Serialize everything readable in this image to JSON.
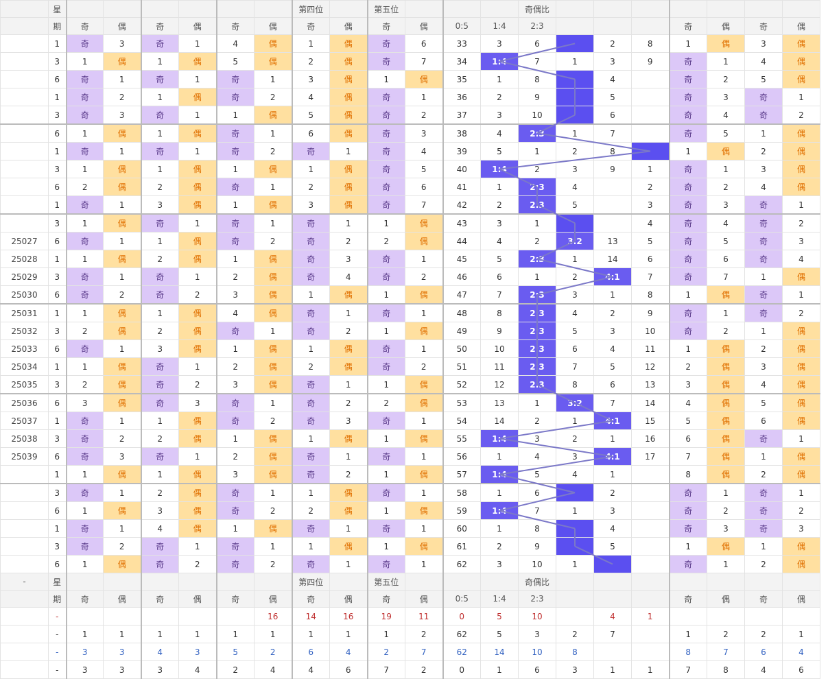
{
  "header": {
    "row1": [
      "",
      "星",
      "",
      "",
      "",
      "",
      "",
      "",
      "第四位",
      "",
      "第五位",
      "",
      "",
      "",
      "奇偶比",
      "",
      "",
      "",
      "",
      "",
      "",
      ""
    ],
    "row2": [
      "",
      "期",
      "奇",
      "偶",
      "奇",
      "偶",
      "奇",
      "偶",
      "奇",
      "偶",
      "奇",
      "偶",
      "0:5",
      "1:4",
      "2:3",
      "",
      "",
      "",
      "奇",
      "偶",
      "奇",
      "偶"
    ]
  },
  "rows": [
    [
      "",
      "1",
      "奇",
      "3",
      "奇",
      "1",
      "4",
      "偶",
      "1",
      "偶",
      "奇",
      "6",
      "33",
      "3",
      "6",
      "#",
      "2",
      "8",
      "1",
      "偶",
      "3",
      "偶"
    ],
    [
      "",
      "3",
      "1",
      "偶",
      "1",
      "偶",
      "5",
      "偶",
      "2",
      "偶",
      "奇",
      "7",
      "34",
      "1:4",
      "7",
      "1",
      "3",
      "9",
      "奇",
      "1",
      "4",
      "偶"
    ],
    [
      "",
      "6",
      "奇",
      "1",
      "奇",
      "1",
      "奇",
      "1",
      "3",
      "偶",
      "1",
      "偶",
      "35",
      "1",
      "8",
      "#",
      "4",
      "",
      "奇",
      "2",
      "5",
      "偶"
    ],
    [
      "",
      "1",
      "奇",
      "2",
      "1",
      "偶",
      "奇",
      "2",
      "4",
      "偶",
      "奇",
      "1",
      "36",
      "2",
      "9",
      "#",
      "5",
      "",
      "奇",
      "3",
      "奇",
      "1"
    ],
    [
      "",
      "3",
      "奇",
      "3",
      "奇",
      "1",
      "1",
      "偶",
      "5",
      "偶",
      "奇",
      "2",
      "37",
      "3",
      "10",
      "#",
      "6",
      "",
      "奇",
      "4",
      "奇",
      "2"
    ],
    [
      "",
      "6",
      "1",
      "偶",
      "1",
      "偶",
      "奇",
      "1",
      "6",
      "偶",
      "奇",
      "3",
      "38",
      "4",
      "2:3",
      "1",
      "7",
      "",
      "奇",
      "5",
      "1",
      "偶"
    ],
    [
      "",
      "1",
      "奇",
      "1",
      "奇",
      "1",
      "奇",
      "2",
      "奇",
      "1",
      "奇",
      "4",
      "39",
      "5",
      "1",
      "2",
      "8",
      "#",
      "1",
      "偶",
      "2",
      "偶"
    ],
    [
      "",
      "3",
      "1",
      "偶",
      "1",
      "偶",
      "1",
      "偶",
      "1",
      "偶",
      "奇",
      "5",
      "40",
      "1:4",
      "2",
      "3",
      "9",
      "1",
      "奇",
      "1",
      "3",
      "偶"
    ],
    [
      "",
      "6",
      "2",
      "偶",
      "2",
      "偶",
      "奇",
      "1",
      "2",
      "偶",
      "奇",
      "6",
      "41",
      "1",
      "2:3",
      "4",
      "",
      "2",
      "奇",
      "2",
      "4",
      "偶"
    ],
    [
      "",
      "1",
      "奇",
      "1",
      "3",
      "偶",
      "1",
      "偶",
      "3",
      "偶",
      "奇",
      "7",
      "42",
      "2",
      "2:3",
      "5",
      "",
      "3",
      "奇",
      "3",
      "奇",
      "1"
    ],
    [
      "",
      "3",
      "1",
      "偶",
      "奇",
      "1",
      "奇",
      "1",
      "奇",
      "1",
      "1",
      "偶",
      "43",
      "3",
      "1",
      "#",
      "",
      "4",
      "奇",
      "4",
      "奇",
      "2"
    ],
    [
      "25027",
      "6",
      "奇",
      "1",
      "1",
      "偶",
      "奇",
      "2",
      "奇",
      "2",
      "2",
      "偶",
      "44",
      "4",
      "2",
      "3:2",
      "13",
      "5",
      "奇",
      "5",
      "奇",
      "3"
    ],
    [
      "25028",
      "1",
      "1",
      "偶",
      "2",
      "偶",
      "1",
      "偶",
      "奇",
      "3",
      "奇",
      "1",
      "45",
      "5",
      "2:3",
      "1",
      "14",
      "6",
      "奇",
      "6",
      "奇",
      "4"
    ],
    [
      "25029",
      "3",
      "奇",
      "1",
      "奇",
      "1",
      "2",
      "偶",
      "奇",
      "4",
      "奇",
      "2",
      "46",
      "6",
      "1",
      "2",
      "4:1",
      "7",
      "奇",
      "7",
      "1",
      "偶"
    ],
    [
      "25030",
      "6",
      "奇",
      "2",
      "奇",
      "2",
      "3",
      "偶",
      "1",
      "偶",
      "1",
      "偶",
      "47",
      "7",
      "2:3",
      "3",
      "1",
      "8",
      "1",
      "偶",
      "奇",
      "1"
    ],
    [
      "25031",
      "1",
      "1",
      "偶",
      "1",
      "偶",
      "4",
      "偶",
      "奇",
      "1",
      "奇",
      "1",
      "48",
      "8",
      "2:3",
      "4",
      "2",
      "9",
      "奇",
      "1",
      "奇",
      "2"
    ],
    [
      "25032",
      "3",
      "2",
      "偶",
      "2",
      "偶",
      "奇",
      "1",
      "奇",
      "2",
      "1",
      "偶",
      "49",
      "9",
      "2:3",
      "5",
      "3",
      "10",
      "奇",
      "2",
      "1",
      "偶"
    ],
    [
      "25033",
      "6",
      "奇",
      "1",
      "3",
      "偶",
      "1",
      "偶",
      "1",
      "偶",
      "奇",
      "1",
      "50",
      "10",
      "2:3",
      "6",
      "4",
      "11",
      "1",
      "偶",
      "2",
      "偶"
    ],
    [
      "25034",
      "1",
      "1",
      "偶",
      "奇",
      "1",
      "2",
      "偶",
      "2",
      "偶",
      "奇",
      "2",
      "51",
      "11",
      "2:3",
      "7",
      "5",
      "12",
      "2",
      "偶",
      "3",
      "偶"
    ],
    [
      "25035",
      "3",
      "2",
      "偶",
      "奇",
      "2",
      "3",
      "偶",
      "奇",
      "1",
      "1",
      "偶",
      "52",
      "12",
      "2:3",
      "8",
      "6",
      "13",
      "3",
      "偶",
      "4",
      "偶"
    ],
    [
      "25036",
      "6",
      "3",
      "偶",
      "奇",
      "3",
      "奇",
      "1",
      "奇",
      "2",
      "2",
      "偶",
      "53",
      "13",
      "1",
      "3:2",
      "7",
      "14",
      "4",
      "偶",
      "5",
      "偶"
    ],
    [
      "25037",
      "1",
      "奇",
      "1",
      "1",
      "偶",
      "奇",
      "2",
      "奇",
      "3",
      "奇",
      "1",
      "54",
      "14",
      "2",
      "1",
      "4:1",
      "15",
      "5",
      "偶",
      "6",
      "偶"
    ],
    [
      "25038",
      "3",
      "奇",
      "2",
      "2",
      "偶",
      "1",
      "偶",
      "1",
      "偶",
      "1",
      "偶",
      "55",
      "1:4",
      "3",
      "2",
      "1",
      "16",
      "6",
      "偶",
      "奇",
      "1"
    ],
    [
      "25039",
      "6",
      "奇",
      "3",
      "奇",
      "1",
      "2",
      "偶",
      "奇",
      "1",
      "奇",
      "1",
      "56",
      "1",
      "4",
      "3",
      "4:1",
      "17",
      "7",
      "偶",
      "1",
      "偶"
    ],
    [
      "",
      "1",
      "1",
      "偶",
      "1",
      "偶",
      "3",
      "偶",
      "奇",
      "2",
      "1",
      "偶",
      "57",
      "1:4",
      "5",
      "4",
      "1",
      "",
      "8",
      "偶",
      "2",
      "偶"
    ],
    [
      "",
      "3",
      "奇",
      "1",
      "2",
      "偶",
      "奇",
      "1",
      "1",
      "偶",
      "奇",
      "1",
      "58",
      "1",
      "6",
      "#",
      "2",
      "",
      "奇",
      "1",
      "奇",
      "1"
    ],
    [
      "",
      "6",
      "1",
      "偶",
      "3",
      "偶",
      "奇",
      "2",
      "2",
      "偶",
      "1",
      "偶",
      "59",
      "1:4",
      "7",
      "1",
      "3",
      "",
      "奇",
      "2",
      "奇",
      "2"
    ],
    [
      "",
      "1",
      "奇",
      "1",
      "4",
      "偶",
      "1",
      "偶",
      "奇",
      "1",
      "奇",
      "1",
      "60",
      "1",
      "8",
      "#",
      "4",
      "",
      "奇",
      "3",
      "奇",
      "3"
    ],
    [
      "",
      "3",
      "奇",
      "2",
      "奇",
      "1",
      "奇",
      "1",
      "1",
      "偶",
      "1",
      "偶",
      "61",
      "2",
      "9",
      "#",
      "5",
      "",
      "1",
      "偶",
      "1",
      "偶"
    ],
    [
      "",
      "6",
      "1",
      "偶",
      "奇",
      "2",
      "奇",
      "2",
      "奇",
      "1",
      "奇",
      "1",
      "62",
      "3",
      "10",
      "1",
      "#",
      "",
      "奇",
      "1",
      "2",
      "偶"
    ]
  ],
  "footer_header": {
    "row1": [
      "-",
      "星",
      "",
      "",
      "",
      "",
      "",
      "",
      "第四位",
      "",
      "第五位",
      "",
      "",
      "",
      "奇偶比",
      "",
      "",
      "",
      "",
      "",
      "",
      ""
    ],
    "row2": [
      "",
      "期",
      "奇",
      "偶",
      "奇",
      "偶",
      "奇",
      "偶",
      "奇",
      "偶",
      "奇",
      "偶",
      "0:5",
      "1:4",
      "2:3",
      "",
      "",
      "",
      "奇",
      "偶",
      "奇",
      "偶"
    ]
  },
  "stats": [
    [
      "",
      "-",
      "",
      "",
      "",
      "",
      "",
      "16",
      "14",
      "16",
      "19",
      "11",
      "0",
      "5",
      "10",
      "",
      "4",
      "1",
      "",
      "",
      "",
      ""
    ],
    [
      "",
      "-",
      "1",
      "1",
      "1",
      "1",
      "1",
      "1",
      "1",
      "1",
      "1",
      "2",
      "62",
      "5",
      "3",
      "2",
      "7",
      "",
      "1",
      "2",
      "2",
      "1"
    ],
    [
      "",
      "-",
      "3",
      "3",
      "4",
      "3",
      "5",
      "2",
      "6",
      "4",
      "2",
      "7",
      "62",
      "14",
      "10",
      "8",
      "",
      "",
      "8",
      "7",
      "6",
      "4"
    ],
    [
      "",
      "-",
      "3",
      "3",
      "3",
      "4",
      "2",
      "4",
      "4",
      "6",
      "7",
      "2",
      "0",
      "1",
      "6",
      "3",
      "1",
      "1",
      "7",
      "8",
      "4",
      "6"
    ]
  ],
  "colors": {
    "odd": "#dcc8f8",
    "even": "#ffe0a0",
    "highlight": "#6a5cf0",
    "line": "#7b78c8"
  }
}
